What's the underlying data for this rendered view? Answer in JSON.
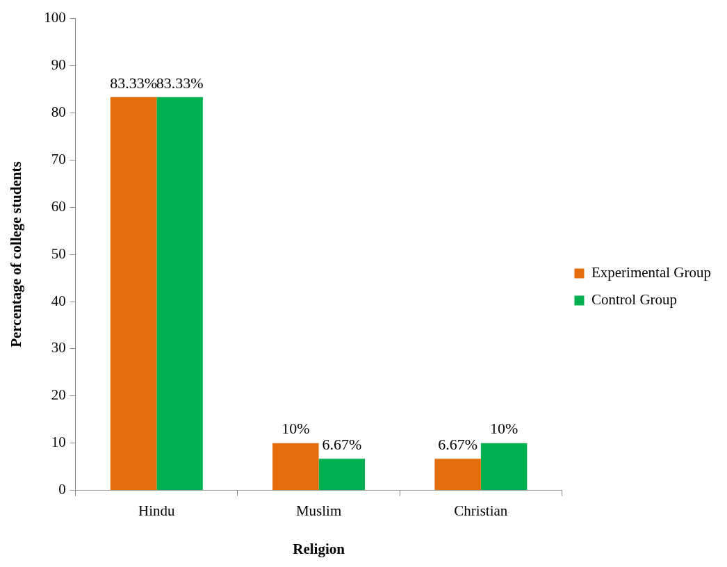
{
  "chart_data": {
    "type": "bar",
    "xlabel": "Religion",
    "ylabel": "Percentage of college students",
    "categories": [
      "Hindu",
      "Muslim",
      "Christian"
    ],
    "series": [
      {
        "name": "Experimental Group",
        "color": "#e46c0a",
        "values": [
          83.33,
          10,
          6.67
        ],
        "value_labels": [
          "83.33%",
          "10%",
          "6.67%"
        ]
      },
      {
        "name": "Control Group",
        "color": "#00b050",
        "values": [
          83.33,
          6.67,
          10
        ],
        "value_labels": [
          "83.33%",
          "6.67%",
          "10%"
        ]
      }
    ],
    "ylim": [
      0,
      100
    ],
    "yticks": [
      0,
      10,
      20,
      30,
      40,
      50,
      60,
      70,
      80,
      90,
      100
    ],
    "grid": false,
    "legend": "right"
  }
}
